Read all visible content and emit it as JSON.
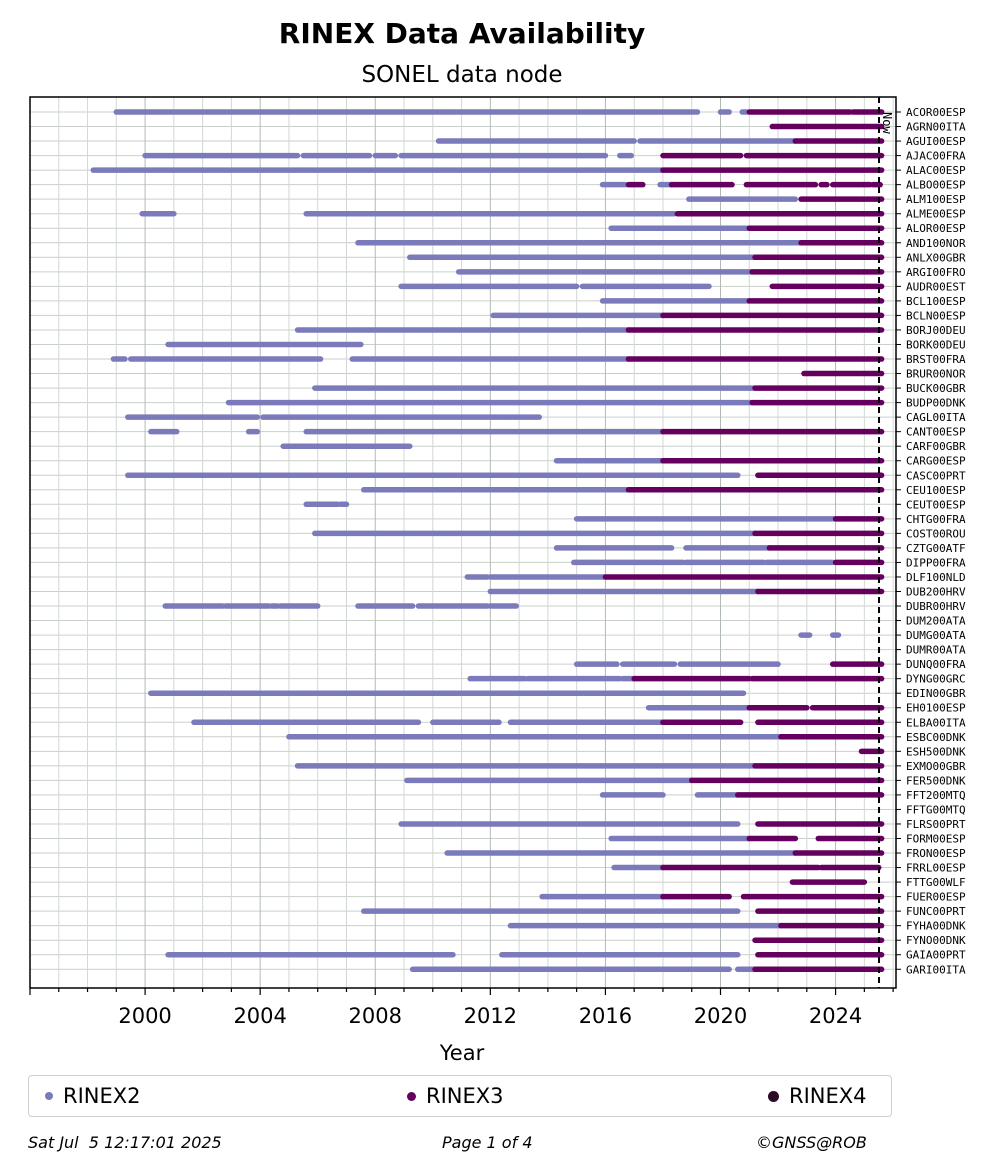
{
  "chart_data": {
    "type": "timeline",
    "title": "RINEX Data Availability",
    "subtitle": "SONEL data node",
    "xlabel": "Year",
    "xlim": [
      1996.0,
      2026.1
    ],
    "xticks": [
      2000,
      2004,
      2008,
      2012,
      2016,
      2020,
      2024
    ],
    "now": 2025.51,
    "now_label": "Now",
    "series": [
      {
        "name": "RINEX2",
        "color": "#7b7bbb"
      },
      {
        "name": "RINEX3",
        "color": "#66005e"
      },
      {
        "name": "RINEX4",
        "color": "#2a0a24"
      }
    ],
    "stations": [
      {
        "name": "ACOR00ESP",
        "R2": [
          [
            1999.0,
            2019.2
          ],
          [
            2020.0,
            2020.3
          ],
          [
            2020.8,
            2020.85
          ]
        ],
        "R3": [
          [
            2021.0,
            2024.5
          ],
          [
            2024.6,
            2025.6
          ]
        ]
      },
      {
        "name": "AGRN00ITA",
        "R2": [],
        "R3": [
          [
            2021.8,
            2025.6
          ]
        ]
      },
      {
        "name": "AGUI00ESP",
        "R2": [
          [
            2010.2,
            2017.0
          ],
          [
            2017.2,
            2022.6
          ]
        ],
        "R3": [
          [
            2022.6,
            2025.6
          ]
        ]
      },
      {
        "name": "AJAC00FRA",
        "R2": [
          [
            2000.0,
            2005.3
          ],
          [
            2005.5,
            2007.8
          ],
          [
            2008.0,
            2008.7
          ],
          [
            2008.9,
            2016.0
          ],
          [
            2016.5,
            2016.9
          ]
        ],
        "R3": [
          [
            2018.0,
            2020.7
          ],
          [
            2020.9,
            2025.6
          ]
        ]
      },
      {
        "name": "ALAC00ESP",
        "R2": [
          [
            1998.2,
            2018.0
          ]
        ],
        "R3": [
          [
            2018.0,
            2025.6
          ]
        ]
      },
      {
        "name": "ALBO00ESP",
        "R2": [
          [
            2015.9,
            2016.7
          ],
          [
            2017.9,
            2018.3
          ]
        ],
        "R3": [
          [
            2016.8,
            2017.3
          ],
          [
            2018.3,
            2020.4
          ],
          [
            2020.9,
            2023.3
          ],
          [
            2023.5,
            2023.7
          ],
          [
            2023.9,
            2025.2
          ],
          [
            2025.3,
            2025.55
          ]
        ]
      },
      {
        "name": "ALM100ESP",
        "R2": [
          [
            2018.9,
            2022.6
          ]
        ],
        "R3": [
          [
            2022.8,
            2025.6
          ]
        ]
      },
      {
        "name": "ALME00ESP",
        "R2": [
          [
            1999.9,
            2001.0
          ],
          [
            2005.6,
            2018.4
          ]
        ],
        "R3": [
          [
            2018.5,
            2025.6
          ]
        ]
      },
      {
        "name": "ALOR00ESP",
        "R2": [
          [
            2016.2,
            2021.0
          ]
        ],
        "R3": [
          [
            2021.0,
            2025.6
          ]
        ]
      },
      {
        "name": "AND100NOR",
        "R2": [
          [
            2007.4,
            2022.8
          ]
        ],
        "R3": [
          [
            2022.8,
            2025.6
          ]
        ]
      },
      {
        "name": "ANLX00GBR",
        "R2": [
          [
            2009.2,
            2021.2
          ]
        ],
        "R3": [
          [
            2021.2,
            2025.6
          ]
        ]
      },
      {
        "name": "ARGI00FRO",
        "R2": [
          [
            2010.9,
            2021.1
          ]
        ],
        "R3": [
          [
            2021.1,
            2025.6
          ]
        ]
      },
      {
        "name": "AUDR00EST",
        "R2": [
          [
            2008.9,
            2015.0
          ],
          [
            2015.2,
            2019.6
          ]
        ],
        "R3": [
          [
            2021.8,
            2025.6
          ]
        ]
      },
      {
        "name": "BCL100ESP",
        "R2": [
          [
            2015.9,
            2021.0
          ]
        ],
        "R3": [
          [
            2021.0,
            2025.6
          ]
        ]
      },
      {
        "name": "BCLN00ESP",
        "R2": [
          [
            2012.1,
            2018.0
          ]
        ],
        "R3": [
          [
            2018.0,
            2025.6
          ]
        ]
      },
      {
        "name": "BORJ00DEU",
        "R2": [
          [
            2005.3,
            2016.8
          ]
        ],
        "R3": [
          [
            2016.8,
            2025.6
          ]
        ]
      },
      {
        "name": "BORK00DEU",
        "R2": [
          [
            2000.8,
            2007.5
          ]
        ],
        "R3": []
      },
      {
        "name": "BRST00FRA",
        "R2": [
          [
            1998.9,
            1999.3
          ],
          [
            1999.5,
            2006.1
          ],
          [
            2007.2,
            2016.8
          ]
        ],
        "R3": [
          [
            2016.8,
            2025.6
          ]
        ]
      },
      {
        "name": "BRUR00NOR",
        "R2": [],
        "R3": [
          [
            2022.9,
            2025.6
          ]
        ]
      },
      {
        "name": "BUCK00GBR",
        "R2": [
          [
            2005.9,
            2021.2
          ]
        ],
        "R3": [
          [
            2021.2,
            2025.6
          ]
        ]
      },
      {
        "name": "BUDP00DNK",
        "R2": [
          [
            2002.9,
            2021.1
          ]
        ],
        "R3": [
          [
            2021.1,
            2025.6
          ]
        ]
      },
      {
        "name": "CAGL00ITA",
        "R2": [
          [
            1999.4,
            2003.9
          ],
          [
            2004.1,
            2013.7
          ]
        ],
        "R3": []
      },
      {
        "name": "CANT00ESP",
        "R2": [
          [
            2000.2,
            2001.1
          ],
          [
            2003.6,
            2003.9
          ],
          [
            2005.6,
            2018.0
          ]
        ],
        "R3": [
          [
            2018.0,
            2025.6
          ]
        ]
      },
      {
        "name": "CARF00GBR",
        "R2": [
          [
            2004.8,
            2009.2
          ]
        ],
        "R3": []
      },
      {
        "name": "CARG00ESP",
        "R2": [
          [
            2014.3,
            2018.0
          ]
        ],
        "R3": [
          [
            2018.0,
            2025.6
          ]
        ]
      },
      {
        "name": "CASC00PRT",
        "R2": [
          [
            1999.4,
            2020.6
          ]
        ],
        "R3": [
          [
            2021.3,
            2025.6
          ]
        ]
      },
      {
        "name": "CEU100ESP",
        "R2": [
          [
            2007.6,
            2016.8
          ]
        ],
        "R3": [
          [
            2016.8,
            2025.6
          ]
        ]
      },
      {
        "name": "CEUT00ESP",
        "R2": [
          [
            2005.6,
            2006.7
          ],
          [
            2006.8,
            2007.0
          ]
        ],
        "R3": []
      },
      {
        "name": "CHTG00FRA",
        "R2": [
          [
            2015.0,
            2024.0
          ]
        ],
        "R3": [
          [
            2024.0,
            2025.6
          ]
        ]
      },
      {
        "name": "COST00ROU",
        "R2": [
          [
            2005.9,
            2021.2
          ]
        ],
        "R3": [
          [
            2021.2,
            2025.6
          ]
        ]
      },
      {
        "name": "CZTG00ATF",
        "R2": [
          [
            2014.3,
            2018.3
          ],
          [
            2018.8,
            2021.7
          ]
        ],
        "R3": [
          [
            2021.7,
            2025.6
          ]
        ]
      },
      {
        "name": "DIPP00FRA",
        "R2": [
          [
            2014.9,
            2018.7
          ],
          [
            2018.8,
            2021.5
          ],
          [
            2021.6,
            2023.9
          ]
        ],
        "R3": [
          [
            2024.0,
            2025.6
          ]
        ]
      },
      {
        "name": "DLF100NLD",
        "R2": [
          [
            2011.2,
            2011.9
          ],
          [
            2012.0,
            2016.0
          ]
        ],
        "R3": [
          [
            2016.0,
            2025.6
          ]
        ]
      },
      {
        "name": "DUB200HRV",
        "R2": [
          [
            2012.0,
            2021.3
          ]
        ],
        "R3": [
          [
            2021.3,
            2025.6
          ]
        ]
      },
      {
        "name": "DUBR00HRV",
        "R2": [
          [
            2000.7,
            2002.7
          ],
          [
            2002.8,
            2004.3
          ],
          [
            2004.4,
            2004.6
          ],
          [
            2004.7,
            2006.0
          ],
          [
            2007.4,
            2009.3
          ],
          [
            2009.5,
            2011.9
          ],
          [
            2012.0,
            2012.9
          ]
        ],
        "R3": []
      },
      {
        "name": "DUM200ATA",
        "R2": [],
        "R3": []
      },
      {
        "name": "DUMG00ATA",
        "R2": [
          [
            2022.8,
            2023.1
          ],
          [
            2023.9,
            2024.1
          ]
        ],
        "R3": []
      },
      {
        "name": "DUMR00ATA",
        "R2": [],
        "R3": []
      },
      {
        "name": "DUNQ00FRA",
        "R2": [
          [
            2015.0,
            2016.4
          ],
          [
            2016.6,
            2018.4
          ],
          [
            2018.6,
            2022.0
          ]
        ],
        "R3": [
          [
            2023.9,
            2025.6
          ]
        ]
      },
      {
        "name": "DYNG00GRC",
        "R2": [
          [
            2011.3,
            2013.2
          ],
          [
            2013.3,
            2016.5
          ],
          [
            2016.6,
            2017.0
          ]
        ],
        "R3": [
          [
            2017.0,
            2021.0
          ],
          [
            2021.1,
            2025.6
          ]
        ]
      },
      {
        "name": "EDIN00GBR",
        "R2": [
          [
            2000.2,
            2020.8
          ]
        ],
        "R3": []
      },
      {
        "name": "EH0100ESP",
        "R2": [
          [
            2017.5,
            2021.0
          ]
        ],
        "R3": [
          [
            2021.0,
            2023.0
          ],
          [
            2023.2,
            2025.6
          ]
        ]
      },
      {
        "name": "ELBA00ITA",
        "R2": [
          [
            2001.7,
            2009.5
          ],
          [
            2010.0,
            2012.3
          ],
          [
            2012.7,
            2018.0
          ]
        ],
        "R3": [
          [
            2018.0,
            2020.7
          ],
          [
            2021.3,
            2025.6
          ]
        ]
      },
      {
        "name": "ESBC00DNK",
        "R2": [
          [
            2005.0,
            2022.1
          ]
        ],
        "R3": [
          [
            2022.1,
            2025.6
          ]
        ]
      },
      {
        "name": "ESH500DNK",
        "R2": [],
        "R3": [
          [
            2024.9,
            2025.6
          ]
        ]
      },
      {
        "name": "EXMO00GBR",
        "R2": [
          [
            2005.3,
            2021.2
          ]
        ],
        "R3": [
          [
            2021.2,
            2025.6
          ]
        ]
      },
      {
        "name": "FER500DNK",
        "R2": [
          [
            2009.1,
            2019.0
          ]
        ],
        "R3": [
          [
            2019.0,
            2025.6
          ]
        ]
      },
      {
        "name": "FFT200MTQ",
        "R2": [
          [
            2015.9,
            2018.0
          ],
          [
            2019.2,
            2020.6
          ]
        ],
        "R3": [
          [
            2020.6,
            2025.6
          ]
        ]
      },
      {
        "name": "FFTG00MTQ",
        "R2": [],
        "R3": []
      },
      {
        "name": "FLRS00PRT",
        "R2": [
          [
            2008.9,
            2020.6
          ]
        ],
        "R3": [
          [
            2021.3,
            2025.6
          ]
        ]
      },
      {
        "name": "FORM00ESP",
        "R2": [
          [
            2016.2,
            2021.0
          ]
        ],
        "R3": [
          [
            2021.0,
            2022.6
          ],
          [
            2023.4,
            2025.6
          ]
        ]
      },
      {
        "name": "FRON00ESP",
        "R2": [
          [
            2010.5,
            2022.6
          ]
        ],
        "R3": [
          [
            2022.6,
            2025.6
          ]
        ]
      },
      {
        "name": "FRRL00ESP",
        "R2": [
          [
            2016.3,
            2018.0
          ]
        ],
        "R3": [
          [
            2018.0,
            2023.4
          ],
          [
            2023.5,
            2025.5
          ]
        ]
      },
      {
        "name": "FTTG00WLF",
        "R2": [],
        "R3": [
          [
            2022.5,
            2025.0
          ]
        ]
      },
      {
        "name": "FUER00ESP",
        "R2": [
          [
            2013.8,
            2018.0
          ]
        ],
        "R3": [
          [
            2018.0,
            2020.3
          ],
          [
            2020.8,
            2025.6
          ]
        ]
      },
      {
        "name": "FUNC00PRT",
        "R2": [
          [
            2007.6,
            2020.6
          ]
        ],
        "R3": [
          [
            2021.3,
            2025.6
          ]
        ]
      },
      {
        "name": "FYHA00DNK",
        "R2": [
          [
            2012.7,
            2022.1
          ]
        ],
        "R3": [
          [
            2022.1,
            2025.6
          ]
        ]
      },
      {
        "name": "FYNO00DNK",
        "R2": [],
        "R3": [
          [
            2021.2,
            2025.6
          ]
        ]
      },
      {
        "name": "GAIA00PRT",
        "R2": [
          [
            2000.8,
            2010.7
          ],
          [
            2012.4,
            2020.6
          ]
        ],
        "R3": [
          [
            2021.3,
            2025.6
          ]
        ]
      },
      {
        "name": "GARI00ITA",
        "R2": [
          [
            2009.3,
            2020.3
          ],
          [
            2020.6,
            2021.2
          ]
        ],
        "R3": [
          [
            2021.2,
            2025.6
          ]
        ]
      }
    ]
  },
  "footer": {
    "timestamp": "Sat Jul  5 12:17:01 2025",
    "page": "Page 1 of 4",
    "copyright": "©GNSS@ROB"
  }
}
